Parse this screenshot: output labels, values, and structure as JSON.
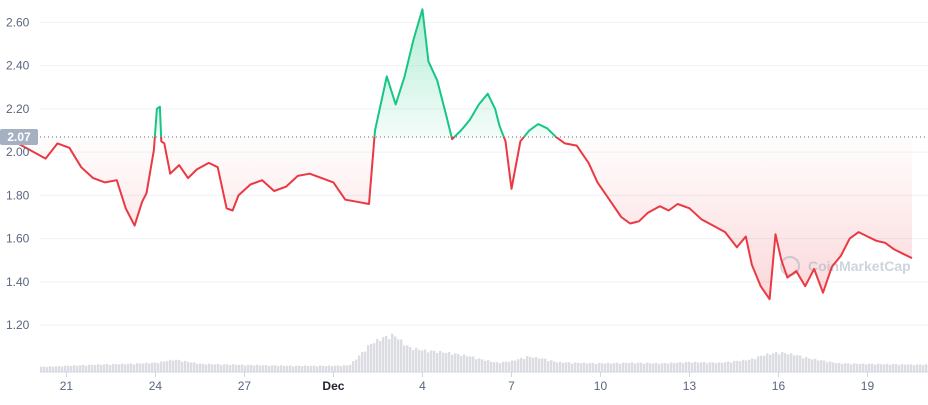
{
  "chart_data": {
    "type": "line",
    "watermark": "CoinMarketCap",
    "reference_value": 2.07,
    "reference_label": "2.07",
    "ylim": [
      1.06,
      2.7
    ],
    "y_ticks": [
      {
        "value": 1.2,
        "label": "1.20"
      },
      {
        "value": 1.4,
        "label": "1.40"
      },
      {
        "value": 1.6,
        "label": "1.60"
      },
      {
        "value": 1.8,
        "label": "1.80"
      },
      {
        "value": 2.0,
        "label": "2.00"
      },
      {
        "value": 2.2,
        "label": "2.20"
      },
      {
        "value": 2.4,
        "label": "2.40"
      },
      {
        "value": 2.6,
        "label": "2.60"
      }
    ],
    "x_range_days": [
      -1.9,
      28.5
    ],
    "x_ticks": [
      {
        "day": 0,
        "label": "21",
        "bold": false
      },
      {
        "day": 3,
        "label": "24",
        "bold": false
      },
      {
        "day": 6,
        "label": "27",
        "bold": false
      },
      {
        "day": 9,
        "label": "Dec",
        "bold": true
      },
      {
        "day": 12,
        "label": "4",
        "bold": false
      },
      {
        "day": 15,
        "label": "7",
        "bold": false
      },
      {
        "day": 18,
        "label": "10",
        "bold": false
      },
      {
        "day": 21,
        "label": "13",
        "bold": false
      },
      {
        "day": 24,
        "label": "16",
        "bold": false
      },
      {
        "day": 27,
        "label": "19",
        "bold": false
      }
    ],
    "x_tick_days_note": "day 0 = 21 Nov; day 9 = 1 Dec",
    "colors": {
      "up": "#16c784",
      "down": "#ea3943",
      "volume": "#dcdde2",
      "grid": "#eff2f5",
      "axis_text": "#58667e",
      "reference_box": "#a6b0c3"
    },
    "price_series": {
      "name": "",
      "x_days": [
        -1.9,
        -1.5,
        -1.1,
        -0.7,
        -0.3,
        0.1,
        0.5,
        0.9,
        1.3,
        1.7,
        2.0,
        2.3,
        2.55,
        2.7,
        2.95,
        3.05,
        3.15,
        3.2,
        3.3,
        3.5,
        3.8,
        4.1,
        4.4,
        4.8,
        5.1,
        5.4,
        5.6,
        5.8,
        6.2,
        6.6,
        7.0,
        7.4,
        7.8,
        8.2,
        8.6,
        9.0,
        9.4,
        9.8,
        10.2,
        10.4,
        10.8,
        11.1,
        11.4,
        11.7,
        12.0,
        12.2,
        12.5,
        12.8,
        13.0,
        13.3,
        13.6,
        13.9,
        14.2,
        14.45,
        14.6,
        14.8,
        15.0,
        15.3,
        15.6,
        15.9,
        16.2,
        16.5,
        16.8,
        17.2,
        17.6,
        17.9,
        18.3,
        18.7,
        19.0,
        19.3,
        19.6,
        20.0,
        20.3,
        20.6,
        21.0,
        21.4,
        21.8,
        22.2,
        22.6,
        22.9,
        23.1,
        23.4,
        23.7,
        23.9,
        24.1,
        24.3,
        24.6,
        24.9,
        25.2,
        25.5,
        25.8,
        26.1,
        26.4,
        26.7,
        27.0,
        27.3,
        27.6,
        27.9,
        28.2,
        28.5
      ],
      "y": [
        2.06,
        2.03,
        2.0,
        1.97,
        2.04,
        2.02,
        1.93,
        1.88,
        1.86,
        1.87,
        1.74,
        1.66,
        1.77,
        1.81,
        2.01,
        2.2,
        2.21,
        2.05,
        2.04,
        1.9,
        1.94,
        1.88,
        1.92,
        1.95,
        1.93,
        1.74,
        1.73,
        1.8,
        1.85,
        1.87,
        1.82,
        1.84,
        1.89,
        1.9,
        1.88,
        1.86,
        1.78,
        1.77,
        1.76,
        2.1,
        2.35,
        2.22,
        2.35,
        2.52,
        2.66,
        2.42,
        2.33,
        2.17,
        2.06,
        2.1,
        2.15,
        2.22,
        2.27,
        2.2,
        2.12,
        2.05,
        1.83,
        2.05,
        2.1,
        2.13,
        2.11,
        2.07,
        2.04,
        2.03,
        1.95,
        1.86,
        1.78,
        1.7,
        1.67,
        1.68,
        1.72,
        1.75,
        1.73,
        1.76,
        1.74,
        1.69,
        1.66,
        1.63,
        1.56,
        1.61,
        1.48,
        1.38,
        1.32,
        1.62,
        1.5,
        1.42,
        1.45,
        1.38,
        1.46,
        1.35,
        1.47,
        1.52,
        1.6,
        1.63,
        1.61,
        1.59,
        1.58,
        1.55,
        1.53,
        1.51
      ]
    },
    "volume_series": {
      "name": "",
      "x_days": [
        -1.9,
        -1.0,
        0.0,
        1.0,
        2.0,
        3.0,
        3.6,
        4.5,
        5.5,
        6.5,
        7.5,
        8.5,
        9.0,
        9.5,
        9.8,
        10.2,
        10.6,
        11.0,
        11.5,
        12.0,
        12.5,
        13.0,
        13.5,
        14.0,
        14.5,
        15.0,
        15.5,
        16.0,
        16.5,
        17.0,
        18.0,
        19.0,
        20.0,
        21.0,
        22.0,
        23.0,
        23.5,
        24.0,
        24.5,
        25.0,
        25.5,
        26.0,
        27.0,
        28.5
      ],
      "level": [
        0.06,
        0.08,
        0.1,
        0.12,
        0.13,
        0.15,
        0.2,
        0.13,
        0.12,
        0.11,
        0.1,
        0.1,
        0.1,
        0.11,
        0.25,
        0.45,
        0.55,
        0.6,
        0.4,
        0.35,
        0.33,
        0.3,
        0.26,
        0.2,
        0.15,
        0.18,
        0.25,
        0.22,
        0.16,
        0.15,
        0.14,
        0.15,
        0.14,
        0.16,
        0.15,
        0.2,
        0.28,
        0.32,
        0.28,
        0.22,
        0.18,
        0.14,
        0.13,
        0.12
      ]
    }
  }
}
